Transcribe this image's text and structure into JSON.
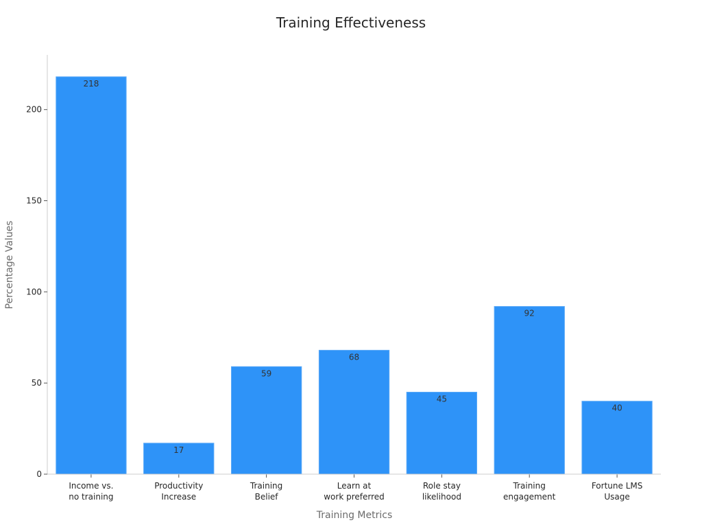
{
  "chart_data": {
    "type": "bar",
    "title": "Training Effectiveness",
    "xlabel": "Training Metrics",
    "ylabel": "Percentage Values",
    "categories": [
      [
        "Income vs.",
        "no training"
      ],
      [
        "Productivity",
        "Increase"
      ],
      [
        "Training",
        "Belief"
      ],
      [
        "Learn at",
        "work preferred"
      ],
      [
        "Role stay",
        "likelihood"
      ],
      [
        "Training",
        "engagement"
      ],
      [
        "Fortune LMS",
        "Usage"
      ]
    ],
    "values": [
      218,
      17,
      59,
      68,
      45,
      92,
      40
    ],
    "ylim": [
      0,
      230
    ],
    "yticks": [
      0,
      50,
      100,
      150,
      200
    ],
    "grid": false,
    "legend": "none",
    "colors": {
      "bar": "#2e93f8",
      "bar_edge": "#5aa9f7",
      "axis": "#cccccc",
      "text": "#262626",
      "label": "#6b6b6b"
    }
  }
}
